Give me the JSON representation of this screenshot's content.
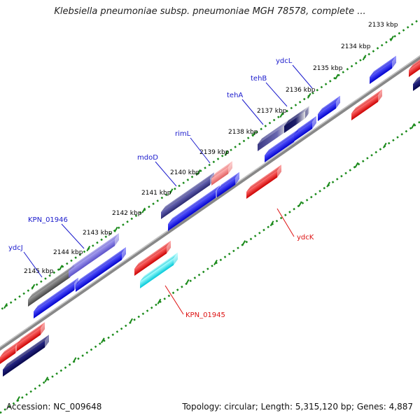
{
  "header": {
    "title": "Klebsiella pneumoniae subsp. pneumoniae MGH 78578, complete ..."
  },
  "footer": {
    "accession": "Accession: NC_009648",
    "summary": "Topology: circular; Length: 5,315,120 bp; Genes: 4,887"
  },
  "colors": {
    "label_top": "#1a1acc",
    "label_bottom": "#dd1111",
    "backbone": "#888888",
    "ticks": "#1a8a1a"
  },
  "kbp_ticks": [
    {
      "label": "2133 kbp"
    },
    {
      "label": "2134 kbp"
    },
    {
      "label": "2135 kbp"
    },
    {
      "label": "2136 kbp"
    },
    {
      "label": "2137 kbp"
    },
    {
      "label": "2138 kbp"
    },
    {
      "label": "2139 kbp"
    },
    {
      "label": "2140 kbp"
    },
    {
      "label": "2141 kbp"
    },
    {
      "label": "2142 kbp"
    },
    {
      "label": "2143 kbp"
    },
    {
      "label": "2144 kbp"
    },
    {
      "label": "2145 kbp"
    }
  ],
  "gene_labels": [
    {
      "name": "ydcL"
    },
    {
      "name": "tehB"
    },
    {
      "name": "tehA"
    },
    {
      "name": "rimL"
    },
    {
      "name": "mdoD"
    },
    {
      "name": "KPN_01946"
    },
    {
      "name": "ydcJ"
    },
    {
      "name": "ydcK"
    },
    {
      "name": "KPN_01945"
    }
  ]
}
